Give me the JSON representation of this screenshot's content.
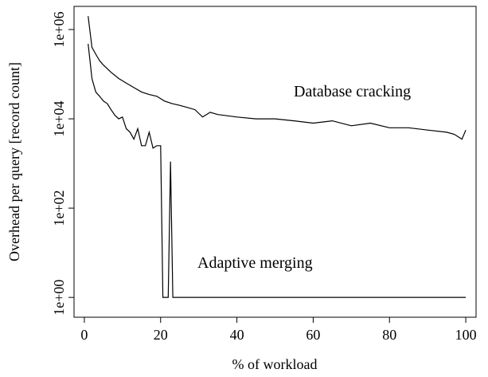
{
  "chart_data": {
    "type": "line",
    "x_label": "% of workload",
    "y_label": "Overhead per query [record count]",
    "log_y": true,
    "xlim": [
      -2.7,
      102.7
    ],
    "ylim": [
      0.36,
      3300000
    ],
    "xticks": [
      0,
      20,
      40,
      60,
      80,
      100
    ],
    "yticks": [
      {
        "value": 1,
        "label": "1e+00"
      },
      {
        "value": 100,
        "label": "1e+02"
      },
      {
        "value": 10000,
        "label": "1e+04"
      },
      {
        "value": 1000000,
        "label": "1e+06"
      }
    ],
    "annotations": [
      "Database cracking",
      "Adaptive merging"
    ],
    "series": [
      {
        "name": "Database cracking",
        "color": "#000000",
        "x": [
          1,
          2,
          3,
          4,
          5,
          7,
          9,
          11,
          13,
          15,
          17,
          19,
          21,
          23,
          25,
          27,
          29,
          31,
          33,
          35,
          40,
          45,
          50,
          55,
          60,
          65,
          70,
          75,
          80,
          85,
          90,
          95,
          97,
          99,
          100
        ],
        "values": [
          2000000,
          400000,
          280000,
          200000,
          160000,
          110000,
          80000,
          63000,
          50000,
          40000,
          35000,
          32000,
          25000,
          22000,
          20000,
          18000,
          16000,
          11000,
          14000,
          12500,
          11000,
          10000,
          10000,
          9000,
          8000,
          9000,
          7000,
          8000,
          6300,
          6300,
          5600,
          5000,
          4500,
          3500,
          5600
        ]
      },
      {
        "name": "Adaptive merging",
        "color": "#000000",
        "x": [
          1,
          2,
          3,
          4,
          5,
          6,
          7,
          8,
          9,
          10,
          11,
          12,
          13,
          14,
          15,
          16,
          17,
          18,
          19,
          20,
          20.6,
          22,
          22.6,
          23.2,
          100
        ],
        "values": [
          480000,
          80000,
          40000,
          32000,
          25000,
          22000,
          16000,
          12000,
          10000,
          11000,
          6000,
          5000,
          3500,
          6000,
          2500,
          2500,
          5000,
          2200,
          2500,
          2500,
          1,
          1,
          1100,
          1,
          1
        ]
      }
    ]
  }
}
